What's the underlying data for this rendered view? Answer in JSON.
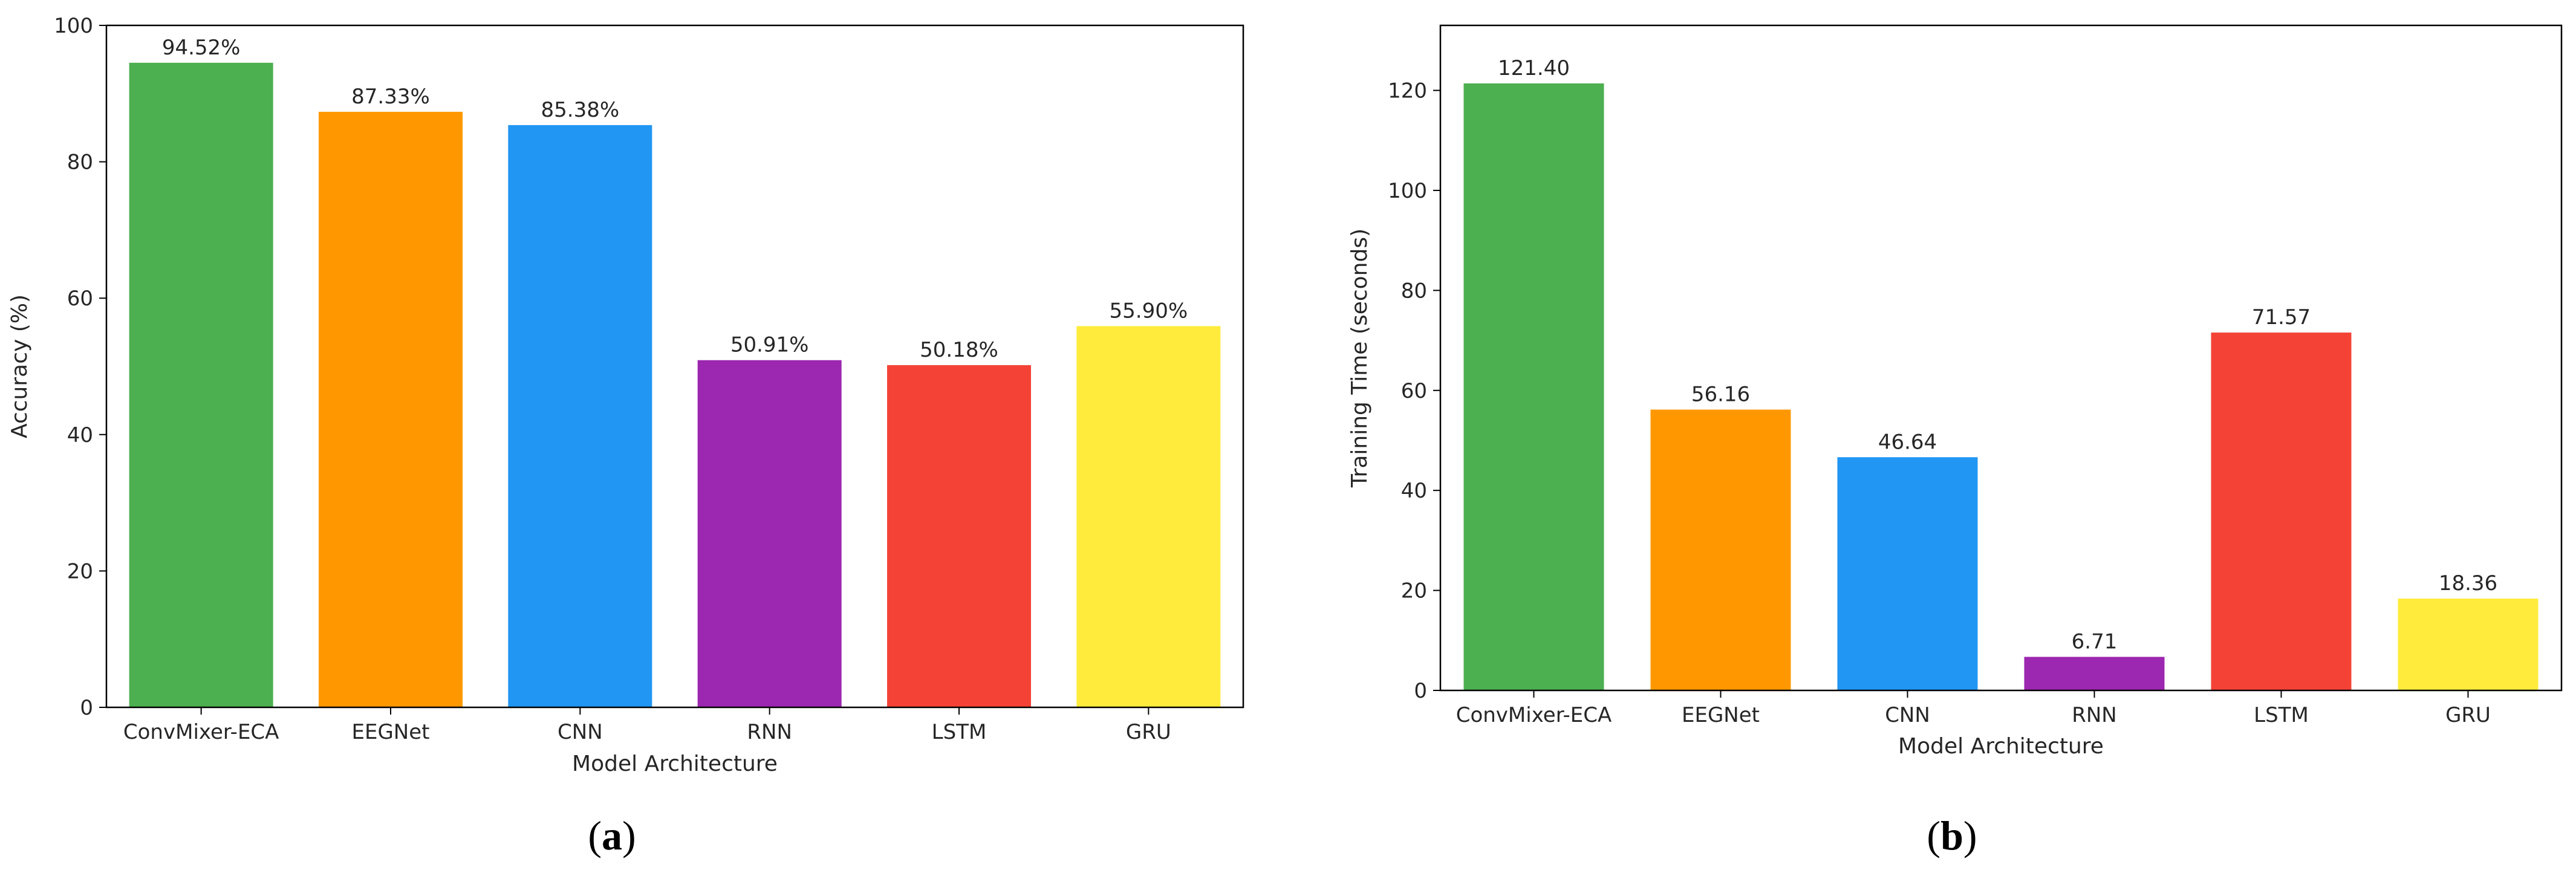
{
  "chart_data": [
    {
      "type": "bar",
      "panel_label": "a",
      "categories": [
        "ConvMixer-ECA",
        "EEGNet",
        "CNN",
        "RNN",
        "LSTM",
        "GRU"
      ],
      "values": [
        94.52,
        87.33,
        85.38,
        50.91,
        50.18,
        55.9
      ],
      "value_labels": [
        "94.52%",
        "87.33%",
        "85.38%",
        "50.91%",
        "50.18%",
        "55.90%"
      ],
      "colors": [
        "#4caf50",
        "#ff9800",
        "#2196f3",
        "#9c27b0",
        "#f44336",
        "#ffeb3b"
      ],
      "title": "",
      "xlabel": "Model Architecture",
      "ylabel": "Accuracy (%)",
      "ylim": [
        0,
        100
      ],
      "yticks": [
        0,
        20,
        40,
        60,
        80,
        100
      ],
      "grid": false
    },
    {
      "type": "bar",
      "panel_label": "b",
      "categories": [
        "ConvMixer-ECA",
        "EEGNet",
        "CNN",
        "RNN",
        "LSTM",
        "GRU"
      ],
      "values": [
        121.4,
        56.16,
        46.64,
        6.71,
        71.57,
        18.36
      ],
      "value_labels": [
        "121.40",
        "56.16",
        "46.64",
        "6.71",
        "71.57",
        "18.36"
      ],
      "colors": [
        "#4caf50",
        "#ff9800",
        "#2196f3",
        "#9c27b0",
        "#f44336",
        "#ffeb3b"
      ],
      "title": "",
      "xlabel": "Model Architecture",
      "ylabel": "Training Time (seconds)",
      "ylim": [
        0,
        133
      ],
      "yticks": [
        0,
        20,
        40,
        60,
        80,
        100,
        120
      ],
      "grid": false
    }
  ]
}
